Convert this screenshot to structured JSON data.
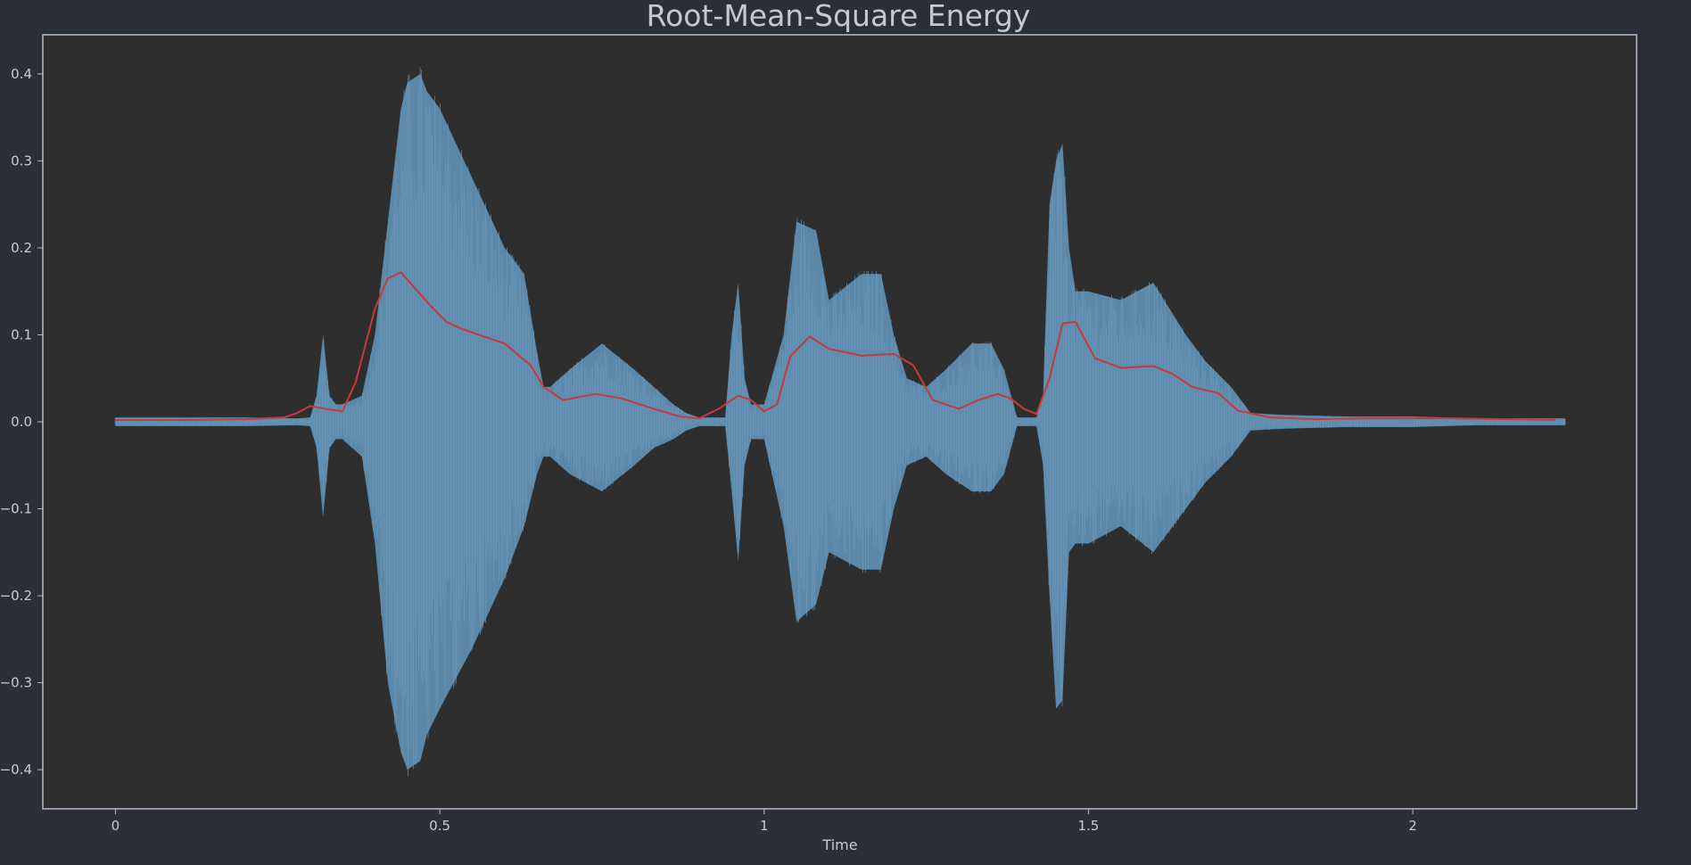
{
  "chart_data": {
    "type": "line",
    "title": "Root-Mean-Square Energy",
    "xlabel": "Time",
    "ylabel": "",
    "xlim": [
      -0.112,
      2.345
    ],
    "ylim": [
      -0.445,
      0.445
    ],
    "x_ticks": [
      0,
      0.5,
      1,
      1.5,
      2
    ],
    "x_tick_labels": [
      "0",
      "0.5",
      "1",
      "1.5",
      "2"
    ],
    "y_ticks": [
      0.4,
      0.3,
      0.2,
      0.1,
      0.0,
      -0.1,
      -0.2,
      -0.3,
      -0.4
    ],
    "y_tick_labels": [
      "0.4",
      "0.3",
      "0.2",
      "0.1",
      "0.0",
      "−0.1",
      "−0.2",
      "−0.3",
      "−0.4"
    ],
    "grid": false,
    "colors": {
      "background": "#2b2f38",
      "plot_area": "#2e2e2e",
      "waveform": "#5b87a8",
      "rms": "#c73a3a",
      "frame": "#b9bcc2"
    },
    "series": [
      {
        "type": "area",
        "x": [
          0,
          0.1,
          0.2,
          0.28,
          0.3,
          0.31,
          0.32,
          0.33,
          0.34,
          0.35,
          0.38,
          0.4,
          0.42,
          0.44,
          0.45,
          0.47,
          0.48,
          0.5,
          0.55,
          0.6,
          0.63,
          0.65,
          0.66,
          0.67,
          0.7,
          0.75,
          0.8,
          0.83,
          0.86,
          0.88,
          0.9,
          0.92,
          0.94,
          0.95,
          0.96,
          0.97,
          0.98,
          1.0,
          1.03,
          1.05,
          1.08,
          1.1,
          1.15,
          1.18,
          1.2,
          1.22,
          1.25,
          1.28,
          1.32,
          1.35,
          1.37,
          1.39,
          1.4,
          1.42,
          1.43,
          1.44,
          1.45,
          1.46,
          1.47,
          1.48,
          1.5,
          1.55,
          1.6,
          1.65,
          1.68,
          1.72,
          1.75,
          1.8,
          1.9,
          2.0,
          2.1,
          2.2,
          2.235
        ],
        "upper": [
          0.005,
          0.005,
          0.005,
          0.004,
          0.005,
          0.03,
          0.1,
          0.03,
          0.02,
          0.02,
          0.03,
          0.1,
          0.23,
          0.36,
          0.39,
          0.4,
          0.38,
          0.36,
          0.28,
          0.2,
          0.17,
          0.08,
          0.04,
          0.04,
          0.06,
          0.09,
          0.06,
          0.04,
          0.02,
          0.01,
          0.005,
          0.005,
          0.005,
          0.1,
          0.16,
          0.05,
          0.02,
          0.02,
          0.1,
          0.23,
          0.22,
          0.14,
          0.17,
          0.17,
          0.1,
          0.05,
          0.04,
          0.06,
          0.09,
          0.09,
          0.06,
          0.005,
          0.005,
          0.005,
          0.03,
          0.25,
          0.3,
          0.32,
          0.2,
          0.15,
          0.15,
          0.14,
          0.16,
          0.1,
          0.07,
          0.04,
          0.01,
          0.008,
          0.006,
          0.006,
          0.004,
          0.004,
          0.004
        ],
        "lower": [
          -0.005,
          -0.005,
          -0.005,
          -0.004,
          -0.005,
          -0.03,
          -0.11,
          -0.03,
          -0.02,
          -0.02,
          -0.04,
          -0.14,
          -0.3,
          -0.38,
          -0.4,
          -0.39,
          -0.36,
          -0.33,
          -0.26,
          -0.18,
          -0.12,
          -0.06,
          -0.04,
          -0.04,
          -0.06,
          -0.08,
          -0.05,
          -0.03,
          -0.02,
          -0.01,
          -0.005,
          -0.005,
          -0.005,
          -0.08,
          -0.16,
          -0.05,
          -0.02,
          -0.02,
          -0.12,
          -0.23,
          -0.21,
          -0.15,
          -0.17,
          -0.17,
          -0.1,
          -0.05,
          -0.04,
          -0.06,
          -0.08,
          -0.08,
          -0.06,
          -0.005,
          -0.005,
          -0.005,
          -0.05,
          -0.2,
          -0.33,
          -0.32,
          -0.15,
          -0.14,
          -0.14,
          -0.12,
          -0.15,
          -0.1,
          -0.07,
          -0.04,
          -0.01,
          -0.008,
          -0.006,
          -0.006,
          -0.004,
          -0.004,
          -0.004
        ]
      },
      {
        "type": "line",
        "x": [
          0,
          0.1,
          0.2,
          0.26,
          0.28,
          0.3,
          0.33,
          0.35,
          0.37,
          0.4,
          0.42,
          0.44,
          0.46,
          0.49,
          0.51,
          0.53,
          0.56,
          0.6,
          0.64,
          0.66,
          0.69,
          0.74,
          0.78,
          0.83,
          0.87,
          0.9,
          0.93,
          0.96,
          0.98,
          1.0,
          1.02,
          1.04,
          1.07,
          1.1,
          1.15,
          1.2,
          1.23,
          1.26,
          1.3,
          1.33,
          1.36,
          1.38,
          1.4,
          1.42,
          1.44,
          1.46,
          1.48,
          1.51,
          1.55,
          1.6,
          1.63,
          1.66,
          1.7,
          1.73,
          1.78,
          1.85,
          1.95,
          2.05,
          2.15,
          2.22
        ],
        "y": [
          0.002,
          0.002,
          0.003,
          0.005,
          0.01,
          0.018,
          0.014,
          0.012,
          0.045,
          0.13,
          0.165,
          0.172,
          0.155,
          0.13,
          0.115,
          0.108,
          0.1,
          0.09,
          0.065,
          0.04,
          0.025,
          0.032,
          0.027,
          0.015,
          0.006,
          0.004,
          0.015,
          0.03,
          0.025,
          0.012,
          0.02,
          0.075,
          0.098,
          0.084,
          0.076,
          0.078,
          0.065,
          0.025,
          0.015,
          0.025,
          0.032,
          0.027,
          0.015,
          0.009,
          0.05,
          0.113,
          0.115,
          0.073,
          0.062,
          0.064,
          0.055,
          0.04,
          0.033,
          0.013,
          0.005,
          0.003,
          0.004,
          0.004,
          0.003,
          0.002
        ]
      }
    ]
  }
}
